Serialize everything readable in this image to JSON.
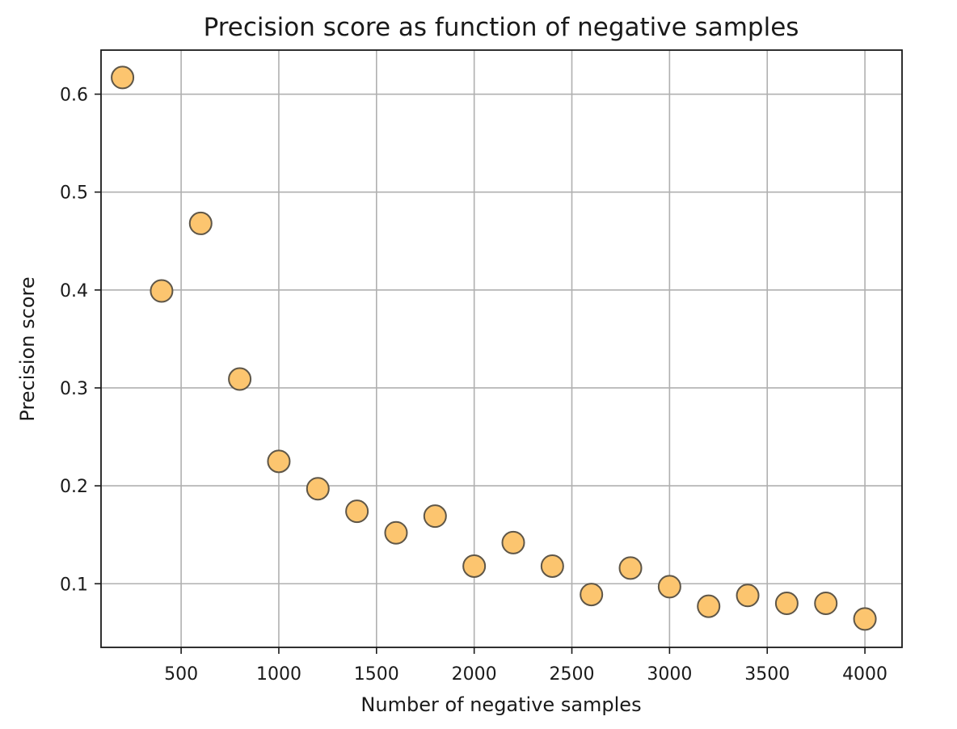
{
  "chart_data": {
    "type": "scatter",
    "title": "Precision score as function of negative samples",
    "xlabel": "Number of negative samples",
    "ylabel": "Precision score",
    "xlim": [
      90,
      4190
    ],
    "ylim": [
      0.035,
      0.645
    ],
    "xticks": [
      500,
      1000,
      1500,
      2000,
      2500,
      3000,
      3500,
      4000
    ],
    "yticks": [
      0.1,
      0.2,
      0.3,
      0.4,
      0.5,
      0.6
    ],
    "xtick_labels": [
      "500",
      "1000",
      "1500",
      "2000",
      "2500",
      "3000",
      "3500",
      "4000"
    ],
    "ytick_labels": [
      "0.1",
      "0.2",
      "0.3",
      "0.4",
      "0.5",
      "0.6"
    ],
    "grid": true,
    "marker_fill": "#fcc56f",
    "marker_edge": "#5e5648",
    "points": [
      {
        "x": 200,
        "y": 0.617
      },
      {
        "x": 400,
        "y": 0.399
      },
      {
        "x": 600,
        "y": 0.468
      },
      {
        "x": 800,
        "y": 0.309
      },
      {
        "x": 1000,
        "y": 0.225
      },
      {
        "x": 1200,
        "y": 0.197
      },
      {
        "x": 1400,
        "y": 0.174
      },
      {
        "x": 1600,
        "y": 0.152
      },
      {
        "x": 1800,
        "y": 0.169
      },
      {
        "x": 2000,
        "y": 0.118
      },
      {
        "x": 2200,
        "y": 0.142
      },
      {
        "x": 2400,
        "y": 0.118
      },
      {
        "x": 2600,
        "y": 0.089
      },
      {
        "x": 2800,
        "y": 0.116
      },
      {
        "x": 3000,
        "y": 0.097
      },
      {
        "x": 3200,
        "y": 0.077
      },
      {
        "x": 3400,
        "y": 0.088
      },
      {
        "x": 3600,
        "y": 0.08
      },
      {
        "x": 3800,
        "y": 0.08
      },
      {
        "x": 4000,
        "y": 0.064
      }
    ]
  }
}
